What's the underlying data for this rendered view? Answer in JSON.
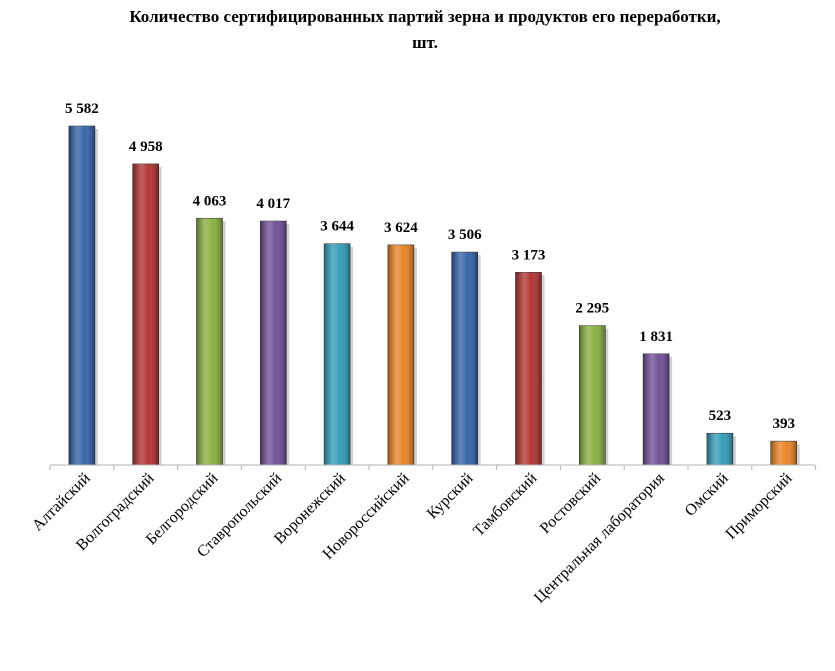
{
  "title_lines": [
    "Количество сертифицированных  партий зерна и продуктов  его переработки,",
    "шт."
  ],
  "chart_data": {
    "type": "bar",
    "title": "Количество сертифицированных  партий зерна и продуктов  его переработки, шт.",
    "xlabel": "",
    "ylabel": "",
    "ylim": [
      0,
      5582
    ],
    "grid": false,
    "legend": "none",
    "categories": [
      "Алтайский",
      "Волгоградский",
      "Белгородский",
      "Ставропольский",
      "Воронежский",
      "Новороссийский",
      "Курский",
      "Тамбовский",
      "Ростовский",
      "Центральная  лаборатория",
      "Омский",
      "Приморский"
    ],
    "values": [
      5582,
      4958,
      4063,
      4017,
      3644,
      3624,
      3506,
      3173,
      2295,
      1831,
      523,
      393
    ],
    "value_labels": [
      "5 582",
      "4 958",
      "4 063",
      "4 017",
      "3 644",
      "3 624",
      "3 506",
      "3 173",
      "2 295",
      "1 831",
      "523",
      "393"
    ],
    "colors": [
      "#2e5fa6",
      "#b02c2c",
      "#86ad3a",
      "#6b4a94",
      "#2d9ab5",
      "#e8801e",
      "#2e5fa6",
      "#b02c2c",
      "#86ad3a",
      "#6b4a94",
      "#2d9ab5",
      "#e8801e"
    ]
  }
}
